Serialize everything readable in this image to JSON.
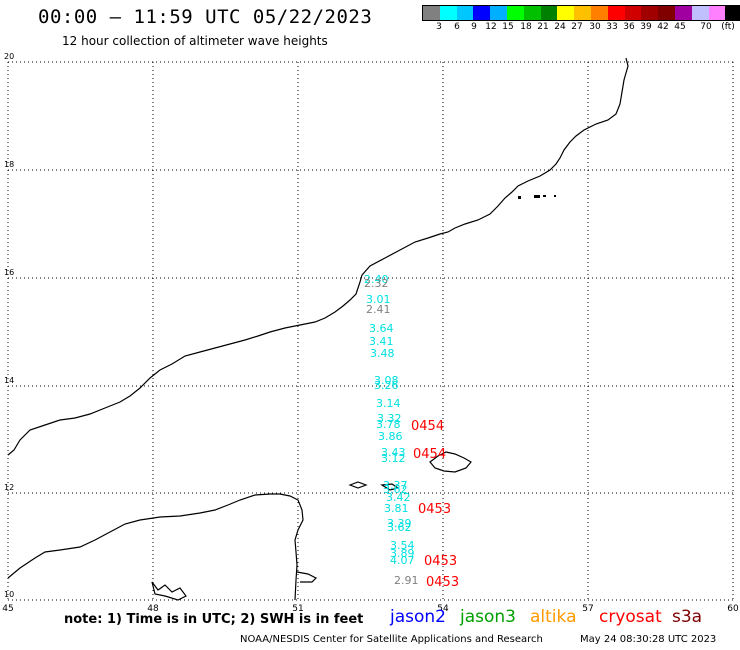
{
  "header": {
    "title": "00:00 – 11:59 UTC 05/22/2023",
    "subtitle": "12 hour collection of altimeter wave heights"
  },
  "colorbar": {
    "colors": [
      "#808080",
      "#00ffff",
      "#00c8ff",
      "#0000ff",
      "#00b0ff",
      "#00ff00",
      "#00c000",
      "#008000",
      "#ffff00",
      "#ffc000",
      "#ff8000",
      "#ff0000",
      "#d00000",
      "#a00000",
      "#800000",
      "#a000a0",
      "#c0c0ff",
      "#ff80ff",
      "#000000"
    ],
    "labels": [
      "3",
      "6",
      "9",
      "12",
      "15",
      "18",
      "21",
      "24",
      "27",
      "30",
      "33",
      "36",
      "39",
      "42",
      "45",
      "70"
    ],
    "unit": "(ft)"
  },
  "axes": {
    "lat_ticks": [
      "20",
      "18",
      "16",
      "14",
      "12",
      "10"
    ],
    "lon_ticks": [
      "45",
      "48",
      "51",
      "54",
      "57",
      "60"
    ]
  },
  "wave_heights": [
    {
      "text": "2.40",
      "color": "#00e0e0"
    },
    {
      "text": "2.32",
      "color": "#808080"
    },
    {
      "text": "3.01",
      "color": "#00e0e0"
    },
    {
      "text": "2.41",
      "color": "#808080"
    },
    {
      "text": "3.64",
      "color": "#00e0e0"
    },
    {
      "text": "3.41",
      "color": "#00e0e0"
    },
    {
      "text": "3.48",
      "color": "#00e0e0"
    },
    {
      "text": "3.08",
      "color": "#00e0e0"
    },
    {
      "text": "3.26",
      "color": "#00e0e0"
    },
    {
      "text": "3.14",
      "color": "#00e0e0"
    },
    {
      "text": "3.32",
      "color": "#00e0e0"
    },
    {
      "text": "3.78",
      "color": "#00e0e0"
    },
    {
      "text": "3.86",
      "color": "#00e0e0"
    },
    {
      "text": "3.43",
      "color": "#00e0e0"
    },
    {
      "text": "3.12",
      "color": "#00e0e0"
    },
    {
      "text": "3.37",
      "color": "#00e0e0"
    },
    {
      "text": "3.62",
      "color": "#00e0e0"
    },
    {
      "text": "3.42",
      "color": "#00e0e0"
    },
    {
      "text": "3.81",
      "color": "#00e0e0"
    },
    {
      "text": "3.39",
      "color": "#00e0e0"
    },
    {
      "text": "3.62",
      "color": "#00e0e0"
    },
    {
      "text": "3.54",
      "color": "#00e0e0"
    },
    {
      "text": "3.89",
      "color": "#00e0e0"
    },
    {
      "text": "4.07",
      "color": "#00e0e0"
    },
    {
      "text": "2.91",
      "color": "#808080"
    }
  ],
  "time_labels": [
    "0454",
    "0454",
    "0453",
    "0453",
    "0453"
  ],
  "footer": {
    "note": "note: 1) Time is in UTC; 2) SWH is in feet",
    "satellites": [
      {
        "name": "jason2",
        "color": "#0000ff"
      },
      {
        "name": "jason3",
        "color": "#00a000"
      },
      {
        "name": "altika",
        "color": "#ff9900"
      },
      {
        "name": "cryosat",
        "color": "#ff0000"
      },
      {
        "name": "s3a",
        "color": "#800000"
      }
    ],
    "credit": "NOAA/NESDIS Center for Satellite Applications and Research",
    "timestamp": "May 24 08:30:28 UTC 2023"
  }
}
